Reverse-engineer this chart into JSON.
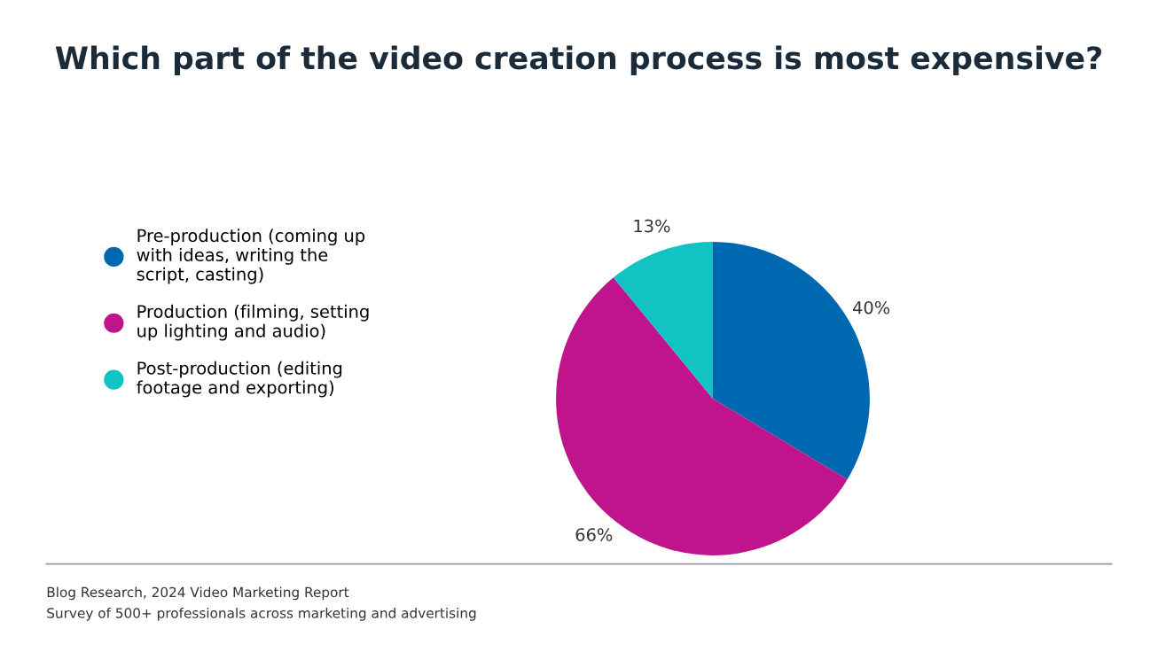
{
  "chart_data": {
    "type": "pie",
    "title": "Which part of the video creation process is most expensive?",
    "categories": [
      "Pre-production (coming up with ideas, writing the script, casting)",
      "Production (filming, setting up lighting and audio)",
      "Post-production (editing footage and exporting)"
    ],
    "values": [
      40,
      66,
      13
    ],
    "colors": [
      "#0068b1",
      "#c0148c",
      "#12c3c3"
    ],
    "value_labels": [
      "40%",
      "66%",
      "13%"
    ],
    "legend": "left",
    "annotations": [
      "Blog Research, 2024 Video Marketing Report",
      "Survey of 500+ professionals across marketing and advertising"
    ]
  }
}
